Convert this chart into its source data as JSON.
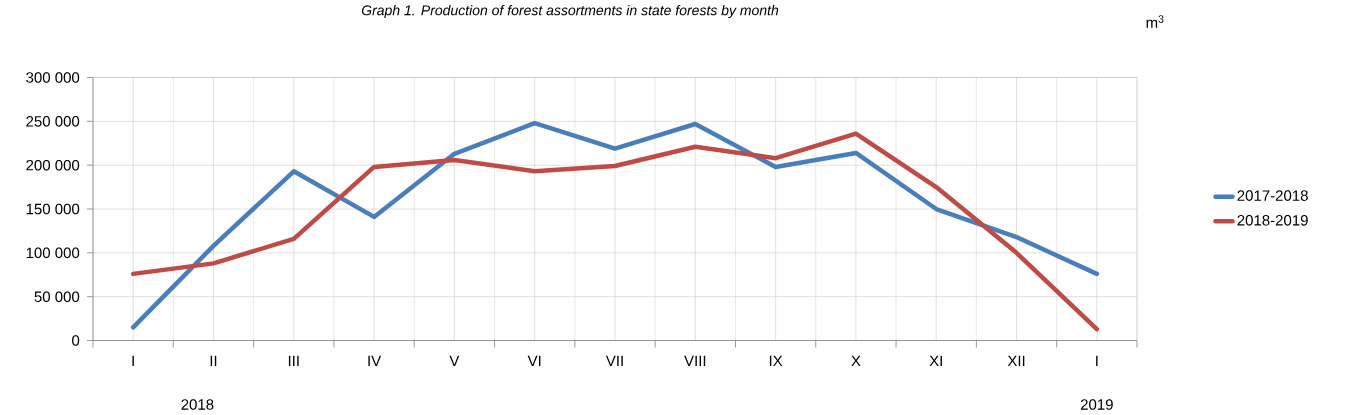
{
  "chart_data": {
    "type": "line",
    "title": "Graph 1. Production of forest assortments in state forests by month",
    "ylabel": "m$^{3}$",
    "categories": [
      "I",
      "II",
      "III",
      "IV",
      "V",
      "VI",
      "VII",
      "VIII",
      "IX",
      "X",
      "XI",
      "XII",
      "I"
    ],
    "series": [
      {
        "name": "2017-2018",
        "color": "#4a7ebb",
        "values": [
          15000,
          108000,
          193000,
          141000,
          213000,
          248000,
          219000,
          247000,
          198000,
          214000,
          150000,
          118000,
          76000
        ]
      },
      {
        "name": "2018-2019",
        "color": "#be4b48",
        "values": [
          76000,
          88000,
          116000,
          198000,
          206000,
          193000,
          199000,
          221000,
          208000,
          236000,
          175000,
          100000,
          13000
        ]
      }
    ],
    "ylim": [
      0,
      300000
    ],
    "yticks": [
      {
        "value": 0,
        "label": "0"
      },
      {
        "value": 50000,
        "label": "50 000"
      },
      {
        "value": 100000,
        "label": "100 000"
      },
      {
        "value": 150000,
        "label": "150 000"
      },
      {
        "value": 200000,
        "label": "200 000"
      },
      {
        "value": 250000,
        "label": "250 000"
      },
      {
        "value": 300000,
        "label": "300 000"
      }
    ],
    "annotations": [
      "2018",
      "2019"
    ],
    "grid": true,
    "legend": "right"
  }
}
